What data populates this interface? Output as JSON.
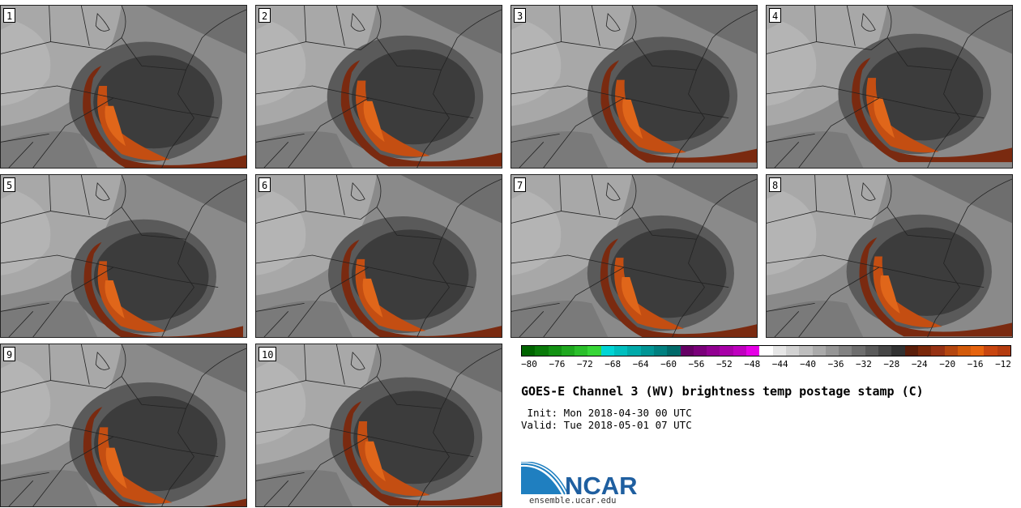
{
  "panels": [
    {
      "label": "1"
    },
    {
      "label": "2"
    },
    {
      "label": "3"
    },
    {
      "label": "4"
    },
    {
      "label": "5"
    },
    {
      "label": "6"
    },
    {
      "label": "7"
    },
    {
      "label": "8"
    },
    {
      "label": "9"
    },
    {
      "label": "10"
    }
  ],
  "colorbar": {
    "colors": [
      "#006400",
      "#0a7a0a",
      "#139113",
      "#1fa81f",
      "#2bbf2b",
      "#37d637",
      "#00d5d5",
      "#00bfbf",
      "#00aaaa",
      "#009595",
      "#008080",
      "#006a6a",
      "#640064",
      "#7a007a",
      "#910091",
      "#a800a8",
      "#bf00bf",
      "#e600e6",
      "#ffffff",
      "#e6e6e6",
      "#d2d2d2",
      "#bebebe",
      "#aaaaaa",
      "#969696",
      "#828282",
      "#6e6e6e",
      "#5a5a5a",
      "#464646",
      "#323232",
      "#5a1e0a",
      "#7a280a",
      "#963214",
      "#b4460f",
      "#d25a0a",
      "#e6640f",
      "#c84610",
      "#b43c0f"
    ],
    "ticks": [
      "−80",
      "−76",
      "−72",
      "−68",
      "−64",
      "−60",
      "−56",
      "−52",
      "−48",
      "−44",
      "−40",
      "−36",
      "−32",
      "−28",
      "−24",
      "−20",
      "−16",
      "−12"
    ]
  },
  "header": {
    "title": "GOES-E Channel 3 (WV) brightness temp postage stamp (C)",
    "init": " Init: Mon 2018-04-30 00 UTC",
    "valid": "Valid: Tue 2018-05-01 07 UTC"
  },
  "brand": {
    "logo_text": "NCAR",
    "url": "ensemble.ucar.edu"
  }
}
